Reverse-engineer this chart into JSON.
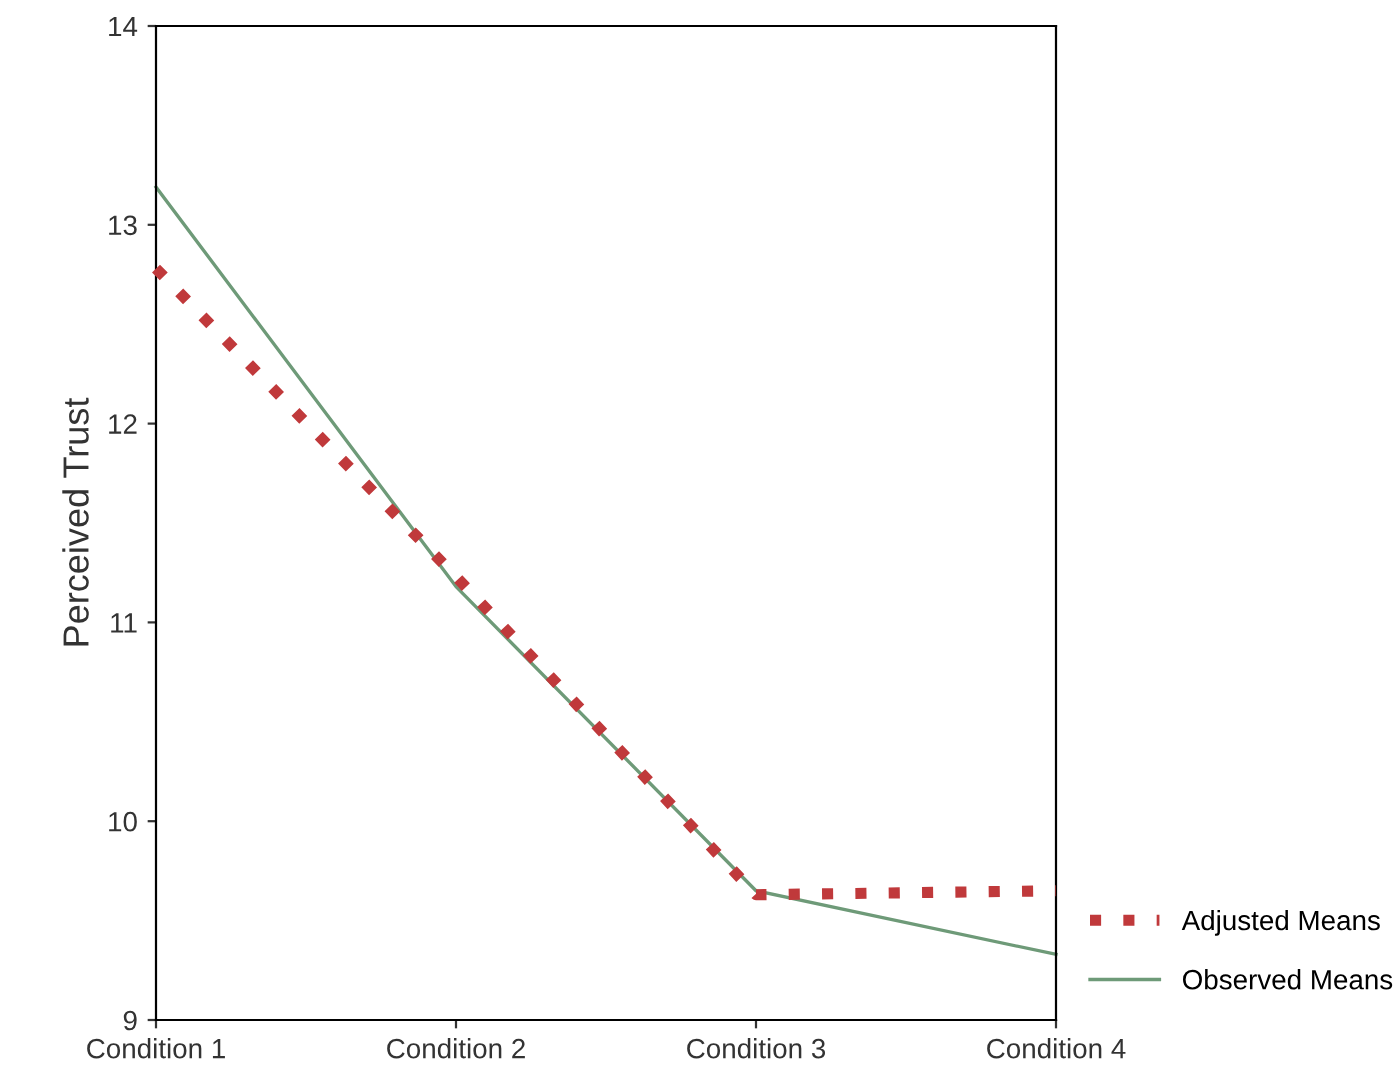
{
  "chart_data": {
    "type": "line",
    "ylabel": "Perceived Trust",
    "categories": [
      "Condition 1",
      "Condition 2",
      "Condition 3",
      "Condition 4"
    ],
    "series": [
      {
        "name": "Adjusted Means",
        "color": "#c0393b",
        "line_style": "dotted",
        "values": [
          12.78,
          11.23,
          9.63,
          9.65
        ]
      },
      {
        "name": "Observed Means",
        "color": "#6e9a78",
        "line_style": "solid",
        "values": [
          13.19,
          11.18,
          9.65,
          9.33
        ]
      }
    ],
    "ylim": [
      9,
      14
    ],
    "yticks": [
      9,
      10,
      11,
      12,
      13,
      14
    ],
    "grid": false,
    "legend": "bottom right",
    "marker": "none"
  }
}
